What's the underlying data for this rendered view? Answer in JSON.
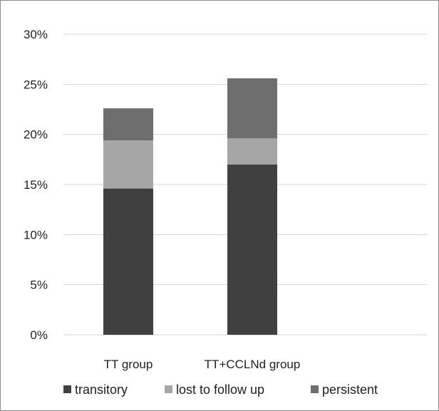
{
  "chart_data": {
    "type": "bar",
    "stacked": true,
    "categories": [
      "TT group",
      "TT+CCLNd group"
    ],
    "series": [
      {
        "name": "transitory",
        "values": [
          14.6,
          17.0
        ],
        "color": "#404040"
      },
      {
        "name": "lost to follow up",
        "values": [
          4.8,
          2.6
        ],
        "color": "#a6a6a6"
      },
      {
        "name": "persistent",
        "values": [
          3.2,
          6.0
        ],
        "color": "#6e6e6e"
      }
    ],
    "ylim": [
      0,
      30
    ],
    "yticks": [
      0,
      5,
      10,
      15,
      20,
      25,
      30
    ],
    "ytick_labels": [
      "0%",
      "5%",
      "10%",
      "15%",
      "20%",
      "25%",
      "30%"
    ],
    "grid": true,
    "legend_position": "bottom",
    "title": "",
    "xlabel": "",
    "ylabel": ""
  }
}
